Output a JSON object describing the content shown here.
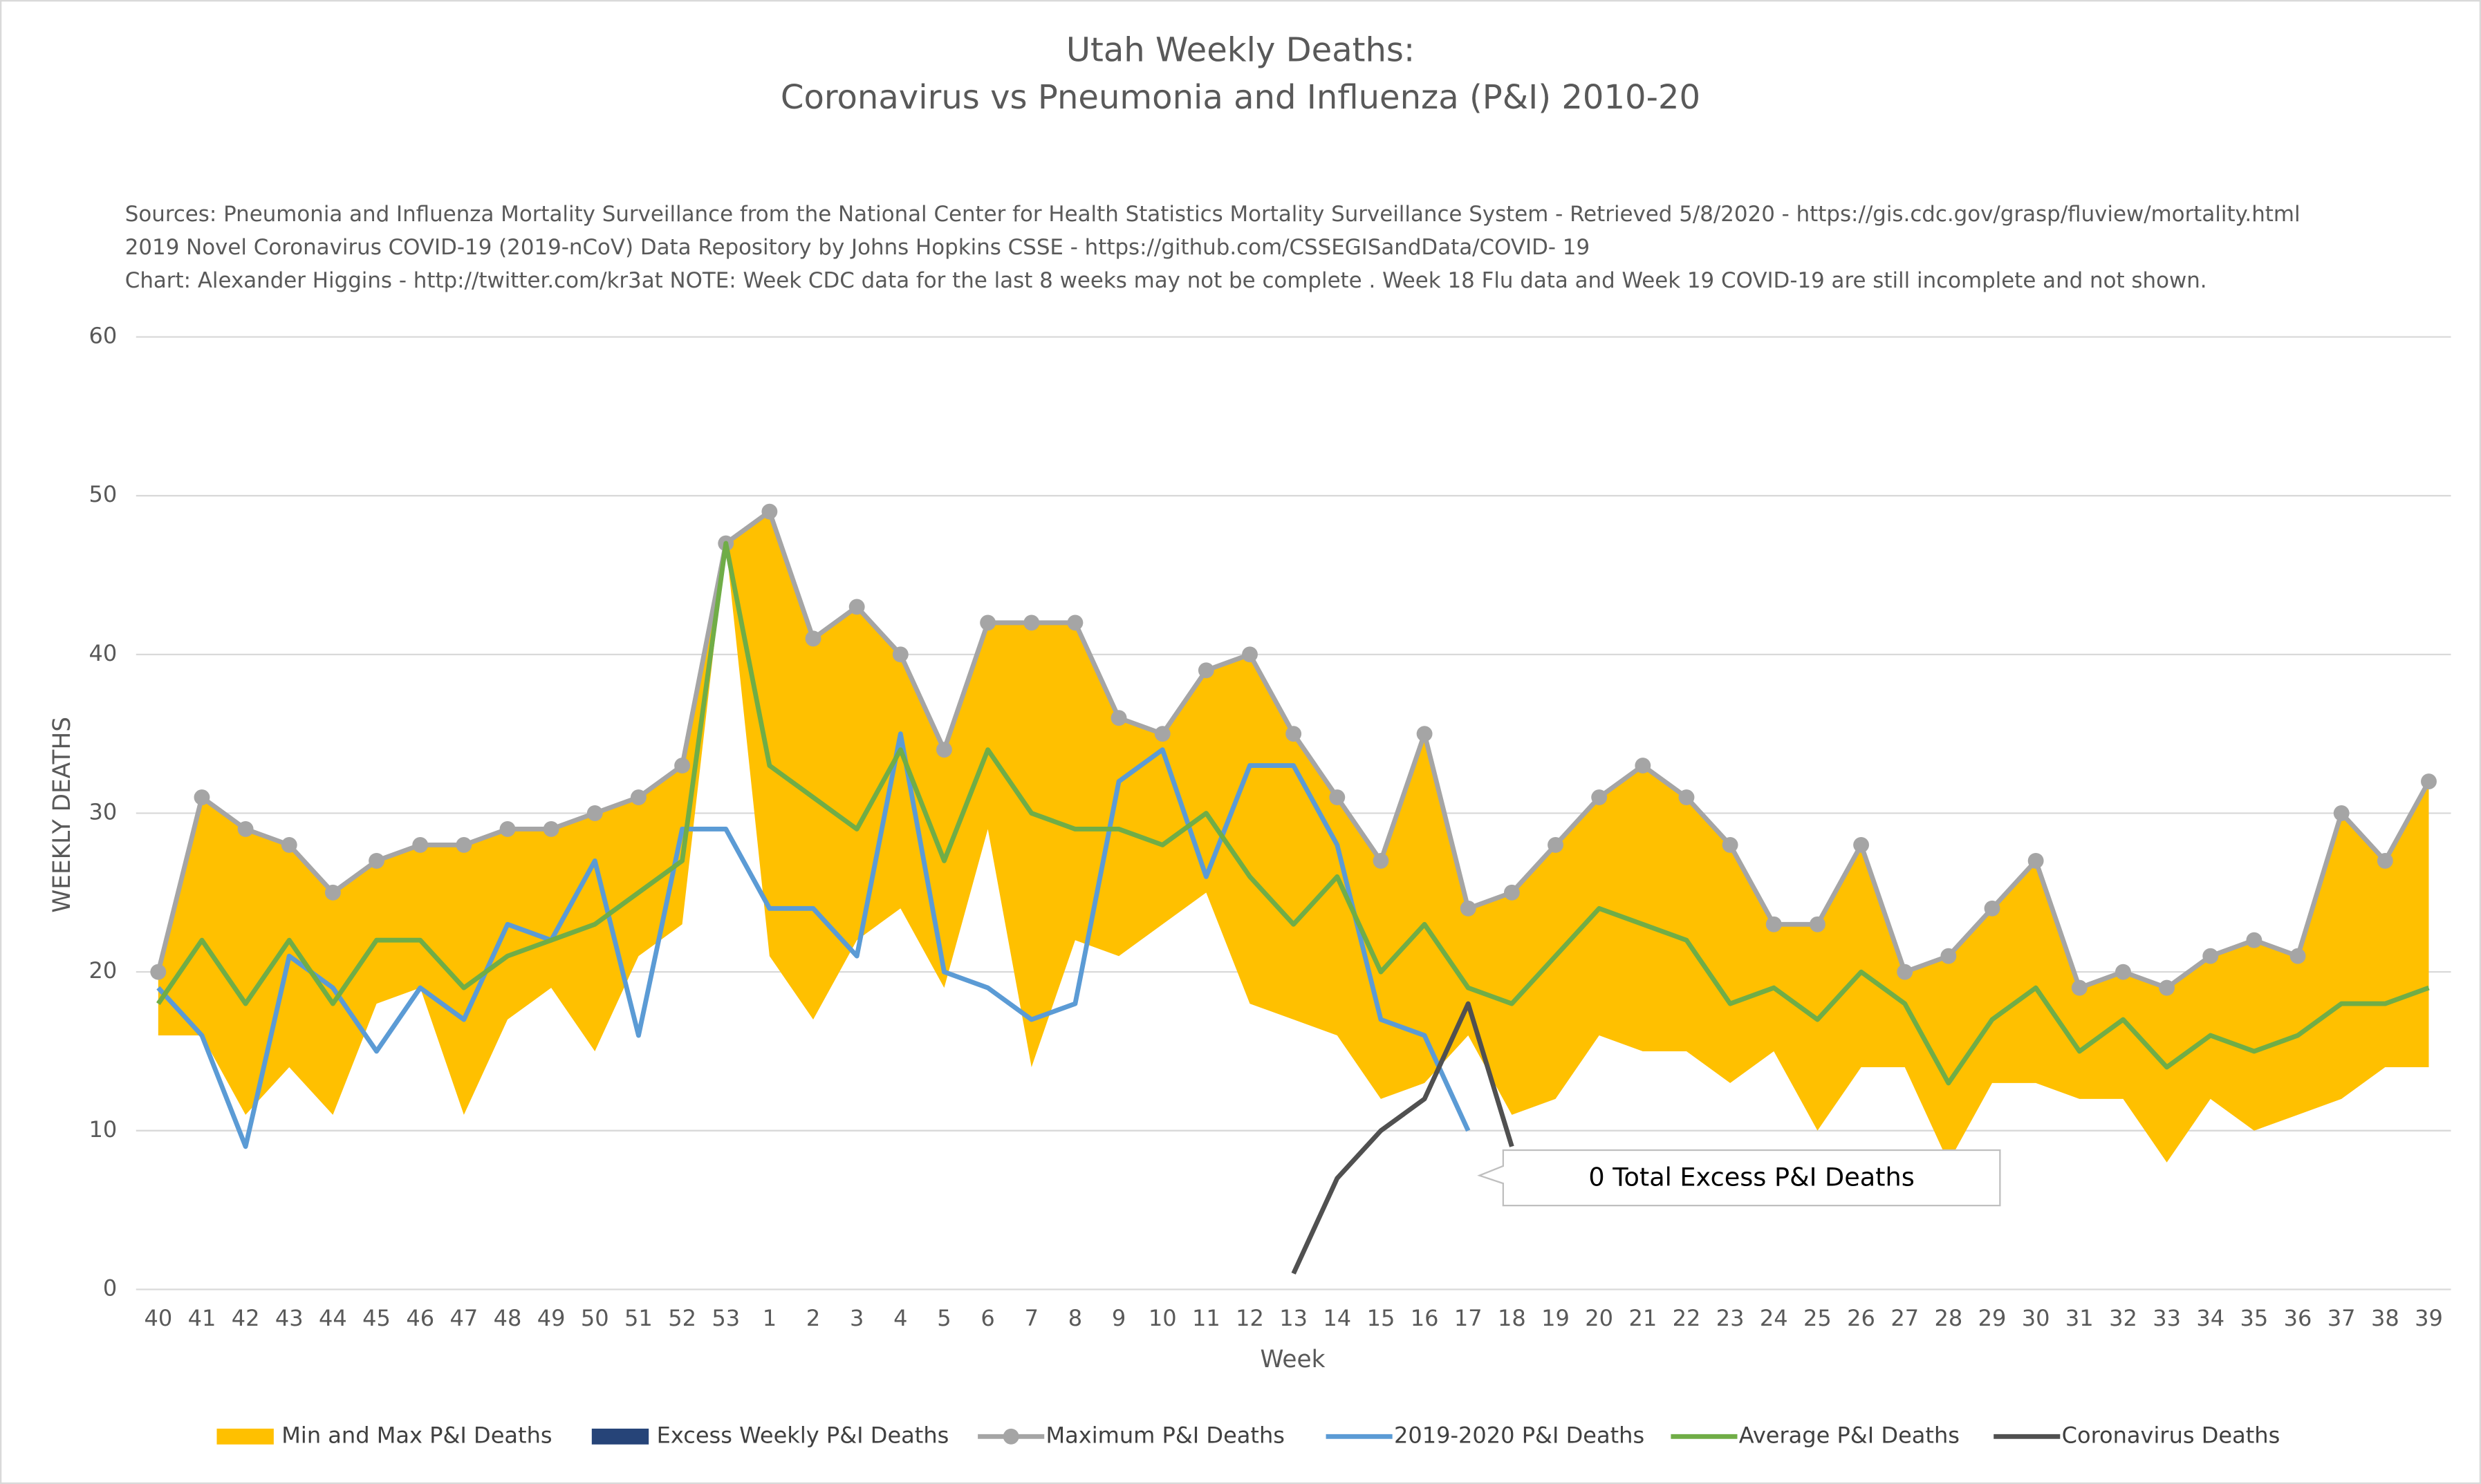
{
  "chart_data": {
    "type": "line",
    "title": [
      "Utah Weekly Deaths:",
      "Coronavirus vs Pneumonia and Influenza (P&I) 2010-20"
    ],
    "notes": [
      "Sources: Pneumonia and Influenza Mortality Surveillance from the National Center for Health Statistics Mortality Surveillance System - Retrieved 5/8/2020 - https://gis.cdc.gov/grasp/fluview/mortality.html",
      "2019 Novel Coronavirus COVID-19 (2019-nCoV) Data Repository by Johns Hopkins CSSE - https://github.com/CSSEGISandData/COVID- 19",
      "Chart: Alexander Higgins - http://twitter.com/kr3at   NOTE: Week CDC data for the last 8 weeks may not be complete . Week 18 Flu data and Week 19 COVID-19 are still incomplete and not shown."
    ],
    "x_label": "Week",
    "y_label": "WEEKLY DEATHS",
    "annotation": "0 Total Excess P&I Deaths",
    "categories": [
      "40",
      "41",
      "42",
      "43",
      "44",
      "45",
      "46",
      "47",
      "48",
      "49",
      "50",
      "51",
      "52",
      "53",
      "1",
      "2",
      "3",
      "4",
      "5",
      "6",
      "7",
      "8",
      "9",
      "10",
      "11",
      "12",
      "13",
      "14",
      "15",
      "16",
      "17",
      "18",
      "19",
      "20",
      "21",
      "22",
      "23",
      "24",
      "25",
      "26",
      "27",
      "28",
      "29",
      "30",
      "31",
      "32",
      "33",
      "34",
      "35",
      "36",
      "37",
      "38",
      "39"
    ],
    "ylim": [
      0,
      60
    ],
    "yticks": [
      0,
      10,
      20,
      30,
      40,
      50,
      60
    ],
    "grid": true,
    "legend": "bottom",
    "series": [
      {
        "name": "Min and Max P&I Deaths",
        "color": "#ffc000",
        "kind": "range",
        "low": [
          16,
          16,
          11,
          14,
          11,
          18,
          19,
          11,
          17,
          19,
          15,
          21,
          23,
          47,
          21,
          17,
          22,
          24,
          19,
          29,
          14,
          22,
          21,
          23,
          25,
          18,
          17,
          16,
          12,
          13,
          16,
          11,
          12,
          16,
          15,
          15,
          13,
          15,
          10,
          14,
          14,
          8,
          13,
          13,
          12,
          12,
          8,
          12,
          10,
          11,
          12,
          14,
          14
        ],
        "high": [
          20,
          31,
          29,
          28,
          25,
          27,
          28,
          28,
          29,
          29,
          30,
          31,
          33,
          47,
          49,
          41,
          43,
          40,
          34,
          42,
          42,
          42,
          36,
          35,
          39,
          40,
          35,
          31,
          27,
          35,
          24,
          25,
          28,
          31,
          33,
          31,
          28,
          23,
          23,
          28,
          20,
          21,
          24,
          27,
          19,
          20,
          19,
          21,
          22,
          21,
          30,
          27,
          32
        ]
      },
      {
        "name": "Excess Weekly P&I Deaths",
        "color": "#264478",
        "kind": "bar"
      },
      {
        "name": "Maximum P&I Deaths",
        "color": "#a5a5a5",
        "kind": "marker-line",
        "values": [
          20,
          31,
          29,
          28,
          25,
          27,
          28,
          28,
          29,
          29,
          30,
          31,
          33,
          47,
          49,
          41,
          43,
          40,
          34,
          42,
          42,
          42,
          36,
          35,
          39,
          40,
          35,
          31,
          27,
          35,
          24,
          25,
          28,
          31,
          33,
          31,
          28,
          23,
          23,
          28,
          20,
          21,
          24,
          27,
          19,
          20,
          19,
          21,
          22,
          21,
          30,
          27,
          32
        ]
      },
      {
        "name": "2019-2020 P&I Deaths",
        "color": "#5b9bd5",
        "kind": "line",
        "values": [
          19,
          16,
          9,
          21,
          19,
          15,
          19,
          17,
          23,
          22,
          27,
          16,
          29,
          29,
          24,
          24,
          21,
          35,
          20,
          19,
          17,
          18,
          32,
          34,
          26,
          33,
          33,
          28,
          17,
          16,
          10,
          null,
          null,
          null,
          null,
          null,
          null,
          null,
          null,
          null,
          null,
          null,
          null,
          null,
          null,
          null,
          null,
          null,
          null,
          null,
          null,
          null,
          null
        ]
      },
      {
        "name": "Average P&I Deaths",
        "color": "#70ad47",
        "kind": "line",
        "values": [
          18,
          22,
          18,
          22,
          18,
          22,
          22,
          19,
          21,
          22,
          23,
          25,
          27,
          47,
          33,
          31,
          29,
          34,
          27,
          34,
          30,
          29,
          29,
          28,
          30,
          26,
          23,
          26,
          20,
          23,
          19,
          18,
          21,
          24,
          23,
          22,
          18,
          19,
          17,
          20,
          18,
          13,
          17,
          19,
          15,
          17,
          14,
          16,
          15,
          16,
          18,
          18,
          19
        ]
      },
      {
        "name": "Coronavirus Deaths",
        "color": "#505050",
        "kind": "line",
        "values": [
          null,
          null,
          null,
          null,
          null,
          null,
          null,
          null,
          null,
          null,
          null,
          null,
          null,
          null,
          null,
          null,
          null,
          null,
          null,
          null,
          null,
          null,
          null,
          null,
          null,
          null,
          1,
          7,
          10,
          12,
          18,
          9,
          null,
          null,
          null,
          null,
          null,
          null,
          null,
          null,
          null,
          null,
          null,
          null,
          null,
          null,
          null,
          null,
          null,
          null,
          null,
          null,
          null
        ]
      }
    ]
  }
}
